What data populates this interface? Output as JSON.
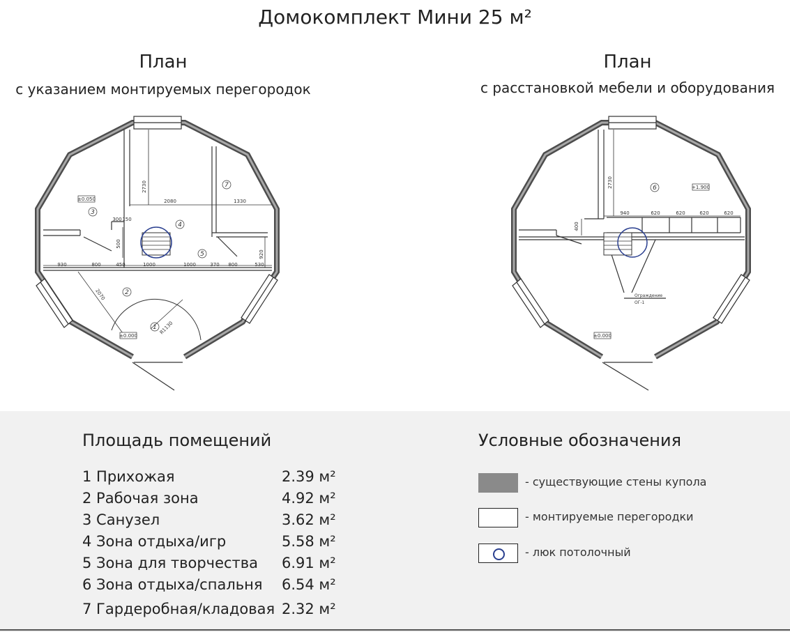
{
  "title": "Домокомплект Мини 25 м²",
  "plan_left": {
    "heading": "План",
    "subtitle": "с указанием монтируемых перегородок",
    "dimensions": [
      "2730",
      "2080",
      "1330",
      "300",
      "150",
      "500",
      "930",
      "800",
      "450",
      "1000",
      "1000",
      "370",
      "800",
      "530",
      "920",
      "2070",
      "R1130"
    ],
    "levels": [
      "±0.050",
      "±0.000"
    ],
    "rooms": [
      "1",
      "2",
      "3",
      "4",
      "5",
      "7"
    ]
  },
  "plan_right": {
    "heading": "План",
    "subtitle": "с расстановкой мебели и оборудования",
    "dimensions": [
      "2730",
      "940",
      "620",
      "620",
      "620",
      "620",
      "400"
    ],
    "levels": [
      "+1.900",
      "±0.000"
    ],
    "rooms": [
      "6"
    ],
    "annotation": [
      "Ограждение",
      "ОГ-1"
    ]
  },
  "areas": {
    "title": "Площадь помещений",
    "rows": [
      {
        "name": "1 Прихожая",
        "value": "2.39 м²"
      },
      {
        "name": "2 Рабочая зона",
        "value": "4.92 м²"
      },
      {
        "name": "3 Санузел",
        "value": "3.62 м²"
      },
      {
        "name": "4 Зона отдыха/игр",
        "value": "5.58 м²"
      },
      {
        "name": "5 Зона для творчества",
        "value": "6.91 м²"
      },
      {
        "name": "6 Зона отдыха/спальня",
        "value": "6.54 м²"
      },
      {
        "name": "7 Гардеробная/кладовая",
        "value": "2.32 м²"
      }
    ]
  },
  "legend": {
    "title": "Условные обозначения",
    "items": [
      {
        "label": "- существующие стены купола"
      },
      {
        "label": "- монтируемые перегородки"
      },
      {
        "label": "- люк потолочный"
      }
    ]
  },
  "colors": {
    "wall": "#8a8a8a",
    "hatch": "#2a3f8f",
    "panel": "#f1f1f1"
  }
}
